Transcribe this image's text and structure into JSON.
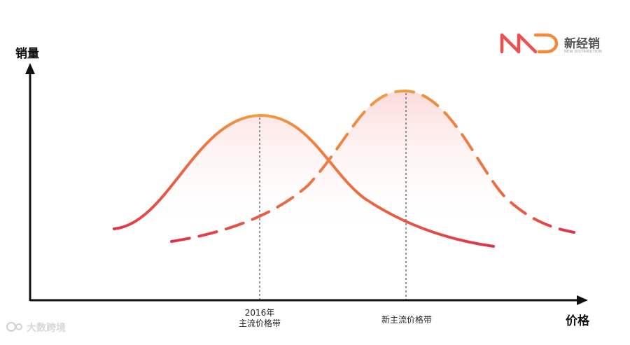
{
  "y_axis_label": "销量",
  "x_axis_label": "价格",
  "markers": [
    {
      "line1": "2016年",
      "line2": "主流价格带"
    },
    {
      "line1": "新主流价格带",
      "line2": ""
    }
  ],
  "logo": {
    "name": "新经销",
    "sub": "NEW DISTRIBUTION"
  },
  "watermark": "大数跨境",
  "colors": {
    "peak": "#f0a040",
    "tail": "#e0304a",
    "fill": "#fde0e0",
    "axis": "#111111"
  }
}
